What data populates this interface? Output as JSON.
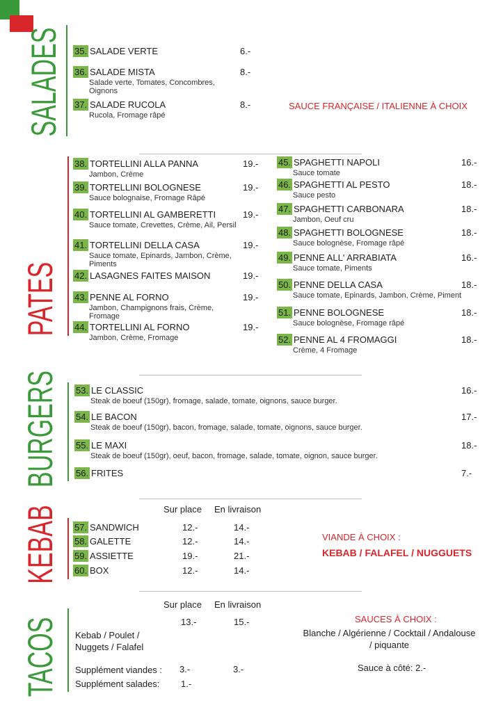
{
  "salades": {
    "title": "SALADES",
    "note": "SAUCE FRANÇAISE / ITALIENNE À CHOIX",
    "items": [
      {
        "num": "35.",
        "name": "SALADE VERTE",
        "price": "6.-"
      },
      {
        "num": "36.",
        "name": "SALADE MISTA",
        "desc": "Salade verte, Tomates, Concombres, Oignons",
        "price": "8.-"
      },
      {
        "num": "37.",
        "name": "SALADE RUCOLA",
        "desc": "Rucola, Fromage râpé",
        "price": "8.-"
      }
    ]
  },
  "pates": {
    "title": "PATES",
    "left": [
      {
        "num": "38.",
        "name": "TORTELLINI ALLA PANNA",
        "desc": "Jambon, Crème",
        "price": "19.-"
      },
      {
        "num": "39.",
        "name": "TORTELLINI BOLOGNESE",
        "desc": "Sauce bolognaise, Fromage Râpé",
        "price": "19.-"
      },
      {
        "num": "40.",
        "name": "TORTELLINI AL GAMBERETTI",
        "desc": "Sauce tomate, Crevettes, Crème, Ail, Persil",
        "price": "19.-"
      },
      {
        "num": "41.",
        "name": "TORTELLINI DELLA CASA",
        "desc": "Sauce tomate, Epinards, Jambon, Crème, Piments",
        "price": "19.-"
      },
      {
        "num": "42.",
        "name": "LASAGNES FAITES MAISON",
        "price": "19.-"
      },
      {
        "num": "43.",
        "name": "PENNE AL FORNO",
        "desc": "Jambon, Champignons frais, Crème, Fromage",
        "price": "19.-"
      },
      {
        "num": "44.",
        "name": "TORTELLINI AL FORNO",
        "desc": "Jambon, Crème, Fromage",
        "price": "19.-"
      }
    ],
    "right": [
      {
        "num": "45.",
        "name": "SPAGHETTI NAPOLI",
        "desc": "Sauce tomate",
        "price": "16.-"
      },
      {
        "num": "46.",
        "name": "SPAGHETTI AL PESTO",
        "desc": "Sauce pesto",
        "price": "18.-"
      },
      {
        "num": "47.",
        "name": "SPAGHETTI CARBONARA",
        "desc": "Jambon, Oeuf cru",
        "price": "18.-"
      },
      {
        "num": "48.",
        "name": "SPAGHETTI BOLOGNESE",
        "desc": "Sauce bolognèse, Fromage râpé",
        "price": "18.-"
      },
      {
        "num": "49.",
        "name": "PENNE ALL' ARRABIATA",
        "desc": "Sauce tomate, Piments",
        "price": "16.-"
      },
      {
        "num": "50.",
        "name": "PENNE DELLA CASA",
        "desc": "Sauce tomate, Epinards, Jambon, Crème, Piment",
        "price": "18.-"
      },
      {
        "num": "51.",
        "name": "PENNE BOLOGNESE",
        "desc": "Sauce bolognèse, Fromage râpé",
        "price": "18.-"
      },
      {
        "num": "52.",
        "name": "PENNE AL 4 FROMAGGI",
        "desc": "Crème, 4 Fromage",
        "price": "18.-"
      }
    ]
  },
  "burgers": {
    "title": "BURGERS",
    "items": [
      {
        "num": "53.",
        "name": "LE CLASSIC",
        "desc": "Steak de boeuf (150gr), fromage, salade, tomate, oignons, sauce burger.",
        "price": "16.-"
      },
      {
        "num": "54.",
        "name": "LE BACON",
        "desc": "Steak de boeuf (150gr), bacon, fromage, salade, tomate, oignons, sauce burger.",
        "price": "17.-"
      },
      {
        "num": "55.",
        "name": "LE MAXI",
        "desc": "Steak de boeuf (150gr), oeuf, bacon, fromage, salade, tomate, oignon, sauce burger.",
        "price": "18.-"
      },
      {
        "num": "56.",
        "name": "FRITES",
        "price": "7.-"
      }
    ]
  },
  "kebab": {
    "title": "KEBAB",
    "headers": [
      "Sur place",
      "En livraison"
    ],
    "items": [
      {
        "num": "57.",
        "name": "SANDWICH",
        "prices": [
          "12.-",
          "14.-"
        ]
      },
      {
        "num": "58.",
        "name": "GALETTE",
        "prices": [
          "12.-",
          "14.-"
        ]
      },
      {
        "num": "59.",
        "name": "ASSIETTE",
        "prices": [
          "19.-",
          "21.-"
        ]
      },
      {
        "num": "60.",
        "name": "BOX",
        "prices": [
          "12.-",
          "14.-"
        ]
      }
    ],
    "note": {
      "label": "VIANDE À CHOIX :",
      "choices": "KEBAB / FALAFEL / NUGGUETS"
    }
  },
  "tacos": {
    "title": "TACOS",
    "headers": [
      "Sur place",
      "En livraison"
    ],
    "rows": [
      {
        "name": "Kebab / Poulet / Nuggets / Falafel",
        "prices": [
          "13.-",
          "15.-"
        ]
      },
      {
        "name": "Supplément viandes :",
        "prices": [
          "3.-",
          "3.-"
        ]
      },
      {
        "name": "Supplément salades:",
        "prices": [
          "1.-"
        ]
      }
    ],
    "sauces": {
      "label": "SAUCES À CHOIX :",
      "list": "Blanche / Algérienne / Cocktail / Andalouse / piquante",
      "side": "Sauce à côté: 2.-"
    }
  }
}
